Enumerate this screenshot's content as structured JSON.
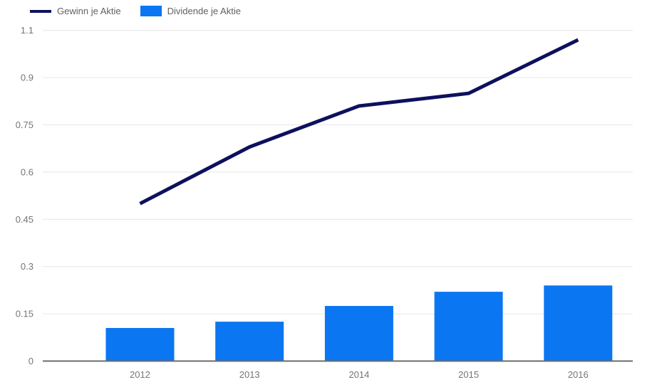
{
  "chart_data": {
    "type": "combo",
    "categories": [
      "2012",
      "2013",
      "2014",
      "2015",
      "2016"
    ],
    "series": [
      {
        "name": "Gewinn je Aktie",
        "type": "line",
        "color": "#0d115c",
        "values": [
          0.5,
          0.68,
          0.81,
          0.85,
          1.02
        ]
      },
      {
        "name": "Dividende je Aktie",
        "type": "bar",
        "color": "#0b76f2",
        "values": [
          0.105,
          0.125,
          0.175,
          0.22,
          0.24
        ]
      }
    ],
    "title": "",
    "xlabel": "",
    "ylabel": "",
    "ylim": [
      0,
      1.05
    ],
    "y_ticks": {
      "values": [
        0,
        0.15,
        0.3,
        0.45,
        0.6,
        0.75,
        0.9,
        1.05
      ],
      "labels": [
        "0",
        "0.15",
        "0.3",
        "0.45",
        "0.6",
        "0.75",
        "0.9",
        "1.1"
      ]
    },
    "grid": true,
    "legend_position": "top-left",
    "colors": {
      "background": "#ffffff",
      "gridline": "#e6e6e6",
      "axis_baseline": "#6b6b6b",
      "tick_label": "#757575",
      "legend_text": "#616161"
    }
  },
  "legend": {
    "items": [
      {
        "label": "Gewinn je Aktie",
        "swatch": "line"
      },
      {
        "label": "Dividende je Aktie",
        "swatch": "bar"
      }
    ]
  }
}
